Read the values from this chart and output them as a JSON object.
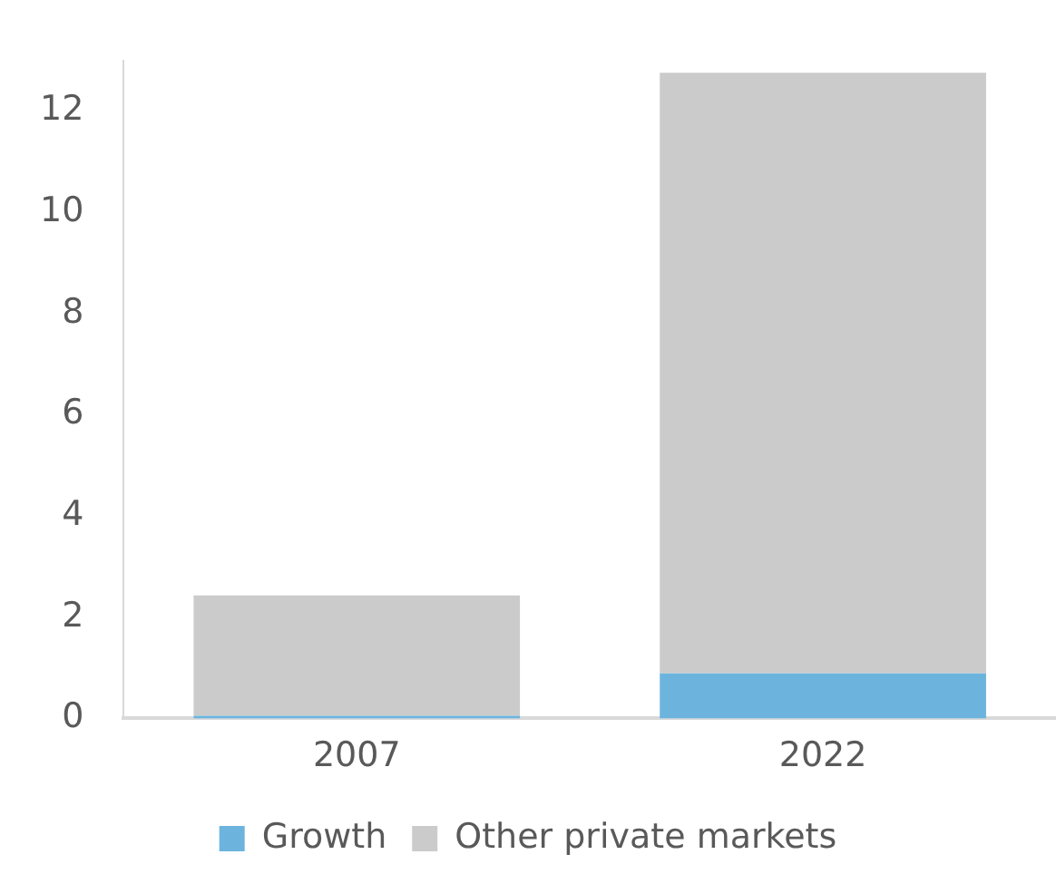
{
  "chart_data": {
    "type": "bar",
    "stacked": true,
    "categories": [
      "2007",
      "2022"
    ],
    "series": [
      {
        "name": "Growth",
        "color": "#6cb4de",
        "values": [
          0.05,
          0.89
        ]
      },
      {
        "name": "Other private markets",
        "color": "#cbcbcb",
        "values": [
          2.38,
          11.87
        ]
      }
    ],
    "ylim": [
      0,
      13
    ],
    "yticks": [
      0,
      2,
      4,
      6,
      8,
      10,
      12
    ],
    "grid": false,
    "legend": "bottom"
  }
}
